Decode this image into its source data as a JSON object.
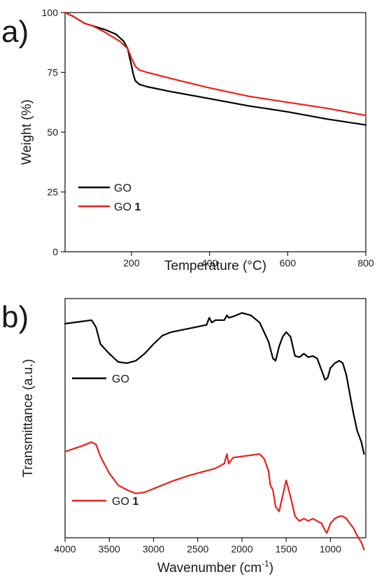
{
  "chart_data": [
    {
      "panel_label": "a)",
      "type": "line",
      "xlabel": "Temperature (°C)",
      "ylabel": "Weight (%)",
      "xlim": [
        30,
        800
      ],
      "ylim": [
        0,
        100
      ],
      "xticks": [
        200,
        400,
        600,
        800
      ],
      "yticks": [
        0,
        25,
        50,
        75,
        100
      ],
      "grid": false,
      "legend": "bottom-left",
      "series": [
        {
          "name": "GO",
          "color": "#000000",
          "x": [
            30,
            50,
            80,
            100,
            130,
            160,
            180,
            190,
            200,
            205,
            210,
            220,
            240,
            300,
            400,
            500,
            600,
            700,
            800
          ],
          "y": [
            100,
            98.5,
            95.5,
            94.5,
            93,
            91,
            88,
            85,
            78,
            74,
            71.5,
            70,
            69,
            67,
            64,
            61,
            58.5,
            55.5,
            53
          ]
        },
        {
          "name": "GO 1",
          "name_parts": [
            "GO ",
            "1"
          ],
          "color": "#e8211b",
          "x": [
            30,
            50,
            80,
            100,
            130,
            150,
            170,
            190,
            200,
            210,
            220,
            240,
            300,
            400,
            500,
            600,
            700,
            800
          ],
          "y": [
            100,
            98.5,
            95.5,
            94.5,
            92,
            90,
            88,
            85,
            81,
            77.5,
            76,
            75,
            72.5,
            68.5,
            65,
            62.5,
            60,
            57
          ]
        }
      ]
    },
    {
      "panel_label": "b)",
      "type": "line",
      "xlabel": "Wavenumber (cm",
      "xlabel_sup": "-1",
      "xlabel_end": ")",
      "ylabel": "Transmittance (a.u.)",
      "xlim": [
        4000,
        600
      ],
      "ylim": [
        0,
        100
      ],
      "x_reversed": true,
      "xticks": [
        4000,
        3500,
        3000,
        2500,
        2000,
        1500,
        1000
      ],
      "grid": false,
      "legend": "inline",
      "series": [
        {
          "name": "GO",
          "color": "#000000",
          "x": [
            4000,
            3800,
            3700,
            3650,
            3600,
            3500,
            3400,
            3300,
            3200,
            3100,
            3000,
            2900,
            2800,
            2600,
            2400,
            2370,
            2340,
            2300,
            2200,
            2170,
            2150,
            2100,
            2000,
            1950,
            1900,
            1800,
            1750,
            1700,
            1650,
            1620,
            1580,
            1540,
            1500,
            1450,
            1400,
            1350,
            1300,
            1250,
            1200,
            1150,
            1100,
            1060,
            1030,
            1000,
            950,
            900,
            860,
            820,
            780,
            740,
            700,
            650,
            620
          ],
          "y": [
            89.5,
            90.5,
            91,
            88,
            81,
            77,
            73.5,
            73,
            74,
            77,
            81,
            84.5,
            86,
            87.5,
            89,
            92,
            90,
            91,
            91,
            93,
            92,
            92.5,
            94,
            93.5,
            93,
            90,
            86,
            82,
            75,
            74,
            80,
            84,
            86,
            84,
            76,
            75.5,
            77,
            75.5,
            76,
            75,
            70,
            66,
            67,
            71,
            73,
            74,
            73,
            68,
            60,
            52,
            45,
            40,
            35
          ]
        },
        {
          "name": "GO 1",
          "name_parts": [
            "GO ",
            "1"
          ],
          "color": "#e8211b",
          "x": [
            4000,
            3800,
            3700,
            3650,
            3600,
            3500,
            3400,
            3300,
            3200,
            3100,
            3000,
            2900,
            2800,
            2600,
            2400,
            2300,
            2200,
            2170,
            2150,
            2100,
            2000,
            1900,
            1800,
            1750,
            1700,
            1680,
            1650,
            1620,
            1600,
            1580,
            1550,
            1500,
            1450,
            1400,
            1350,
            1300,
            1250,
            1200,
            1150,
            1100,
            1060,
            1040,
            1000,
            950,
            900,
            860,
            820,
            780,
            740,
            700,
            650,
            620
          ],
          "y": [
            36,
            38.5,
            40,
            39,
            34,
            27,
            22,
            20,
            18.5,
            19,
            20.5,
            22,
            23.5,
            26,
            28,
            29,
            31,
            35,
            31,
            33.5,
            34,
            34.5,
            35,
            33,
            28,
            22,
            20,
            13,
            12,
            11,
            16,
            24,
            17,
            9,
            7,
            8,
            7,
            8,
            7,
            6,
            3,
            2,
            6,
            8,
            9,
            9,
            8,
            6,
            4,
            1,
            -2,
            -5
          ]
        }
      ]
    }
  ]
}
